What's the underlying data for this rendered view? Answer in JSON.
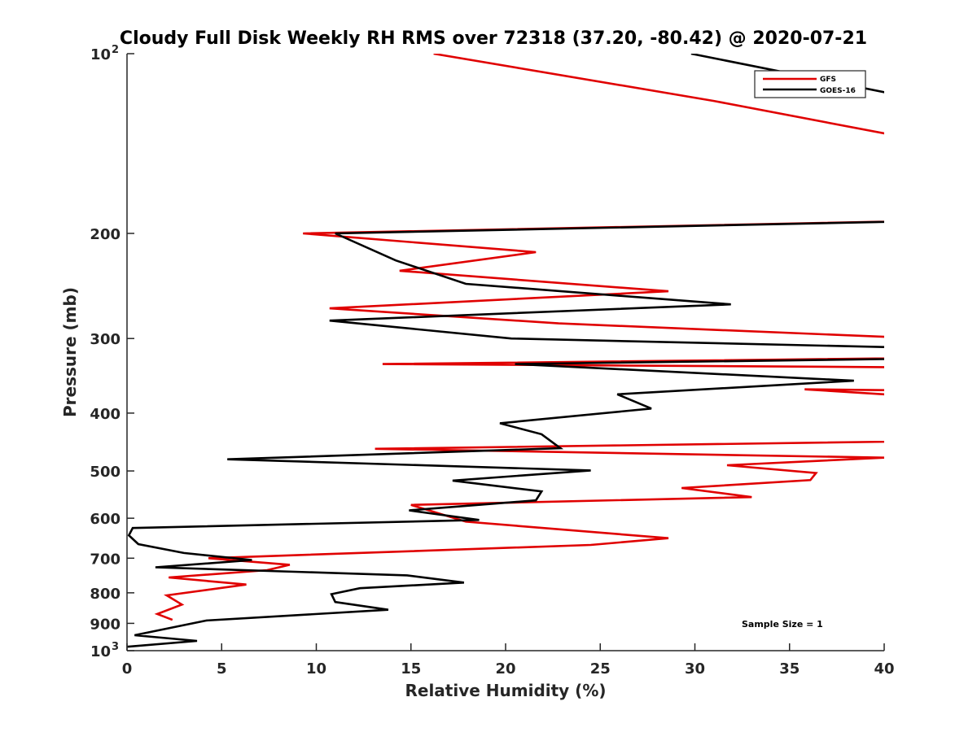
{
  "chart_data": {
    "type": "line",
    "title": "Cloudy Full Disk Weekly RH RMS over 72318 (37.20, -80.42) @ 2020-07-21",
    "xlabel": "Relative Humidity (%)",
    "ylabel": "Pressure (mb)",
    "xlim": [
      0,
      40
    ],
    "ylim": [
      100,
      1000
    ],
    "yscale": "log",
    "yreversed": false,
    "xticks": [
      0,
      5,
      10,
      15,
      20,
      25,
      30,
      35,
      40
    ],
    "xtick_labels": [
      "0",
      "5",
      "10",
      "15",
      "20",
      "25",
      "30",
      "35",
      "40"
    ],
    "yticks": [
      100,
      200,
      300,
      400,
      500,
      600,
      700,
      800,
      900,
      1000
    ],
    "ytick_labels": [
      {
        "base": "10",
        "sup": "2"
      },
      {
        "base": "200",
        "sup": ""
      },
      {
        "base": "300",
        "sup": ""
      },
      {
        "base": "400",
        "sup": ""
      },
      {
        "base": "500",
        "sup": ""
      },
      {
        "base": "600",
        "sup": ""
      },
      {
        "base": "700",
        "sup": ""
      },
      {
        "base": "800",
        "sup": ""
      },
      {
        "base": "900",
        "sup": ""
      },
      {
        "base": "10",
        "sup": "3"
      }
    ],
    "grid": false,
    "legend": {
      "position": "top-right",
      "entries": [
        "GFS",
        "GOES-16"
      ]
    },
    "annotation": "Sample Size = 1",
    "series": [
      {
        "name": "GFS",
        "color": "#e00000",
        "points": [
          [
            16.2,
            100
          ],
          [
            31.0,
            120
          ],
          [
            40.0,
            136
          ],
          [
            55.0,
            160
          ],
          [
            55.0,
            187
          ],
          [
            9.3,
            200
          ],
          [
            21.6,
            215
          ],
          [
            14.4,
            231
          ],
          [
            28.6,
            250
          ],
          [
            10.7,
            267
          ],
          [
            22.8,
            283
          ],
          [
            40.0,
            298
          ],
          [
            55.0,
            305
          ],
          [
            55.0,
            320
          ],
          [
            13.5,
            331
          ],
          [
            40.0,
            335
          ],
          [
            55.0,
            350
          ],
          [
            55.0,
            370
          ],
          [
            35.8,
            365
          ],
          [
            40.0,
            372
          ],
          [
            55.0,
            400
          ],
          [
            55.0,
            440
          ],
          [
            13.1,
            459
          ],
          [
            40.0,
            475
          ],
          [
            31.7,
            489
          ],
          [
            36.4,
            504
          ],
          [
            36.1,
            518
          ],
          [
            29.3,
            534
          ],
          [
            33.0,
            553
          ],
          [
            15.0,
            570
          ],
          [
            17.9,
            608
          ],
          [
            28.6,
            648
          ],
          [
            24.5,
            665
          ],
          [
            4.3,
            700
          ],
          [
            8.6,
            718
          ],
          [
            7.4,
            733
          ],
          [
            2.2,
            754
          ],
          [
            6.3,
            775
          ],
          [
            2.1,
            808
          ],
          [
            2.9,
            837
          ],
          [
            1.6,
            868
          ],
          [
            2.4,
            888
          ]
        ]
      },
      {
        "name": "GOES-16",
        "color": "#000000",
        "points": [
          [
            29.8,
            100
          ],
          [
            40.0,
            116
          ],
          [
            55.0,
            140
          ],
          [
            55.0,
            187
          ],
          [
            11.0,
            200
          ],
          [
            14.2,
            222
          ],
          [
            17.9,
            243
          ],
          [
            31.9,
            263
          ],
          [
            10.7,
            280
          ],
          [
            20.3,
            300
          ],
          [
            40.0,
            310
          ],
          [
            55.0,
            315
          ],
          [
            55.0,
            320
          ],
          [
            20.5,
            331
          ],
          [
            38.4,
            353
          ],
          [
            25.9,
            372
          ],
          [
            27.7,
            393
          ],
          [
            19.7,
            416
          ],
          [
            21.9,
            434
          ],
          [
            22.9,
            458
          ],
          [
            5.3,
            478
          ],
          [
            24.5,
            499
          ],
          [
            17.2,
            519
          ],
          [
            21.9,
            541
          ],
          [
            21.6,
            560
          ],
          [
            14.9,
            582
          ],
          [
            18.6,
            604
          ],
          [
            0.3,
            623
          ],
          [
            0.1,
            641
          ],
          [
            0.6,
            663
          ],
          [
            3.0,
            686
          ],
          [
            6.6,
            705
          ],
          [
            1.5,
            725
          ],
          [
            14.8,
            748
          ],
          [
            17.8,
            769
          ],
          [
            12.3,
            786
          ],
          [
            10.8,
            804
          ],
          [
            11.0,
            829
          ],
          [
            13.8,
            854
          ],
          [
            4.2,
            890
          ],
          [
            0.4,
            942
          ],
          [
            3.7,
            963
          ],
          [
            0.0,
            985
          ]
        ]
      }
    ]
  }
}
